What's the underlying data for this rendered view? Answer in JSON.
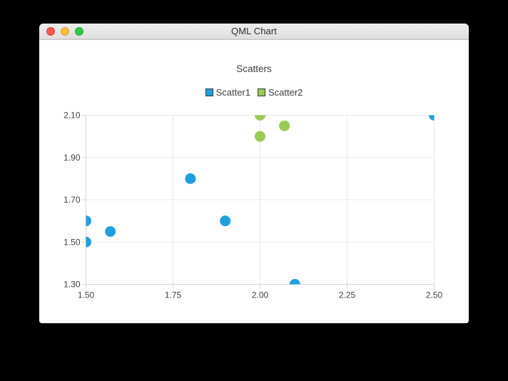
{
  "window": {
    "title": "QML Chart"
  },
  "chart_data": {
    "type": "scatter",
    "title": "Scatters",
    "xlabel": "",
    "ylabel": "",
    "xlim": [
      1.5,
      2.5
    ],
    "ylim": [
      1.3,
      2.1
    ],
    "x_tick_values": [
      1.5,
      1.75,
      2.0,
      2.25,
      2.5
    ],
    "x_tick_labels": [
      "1.50",
      "1.75",
      "2.00",
      "2.25",
      "2.50"
    ],
    "y_tick_values": [
      1.3,
      1.5,
      1.7,
      1.9,
      2.1
    ],
    "y_tick_labels": [
      "1.30",
      "1.50",
      "1.70",
      "1.90",
      "2.10"
    ],
    "grid": true,
    "legend_position": "top-center",
    "point_radius": 7.5,
    "series": [
      {
        "name": "Scatter1",
        "color": "#209fdf",
        "points": [
          {
            "x": 1.5,
            "y": 1.5
          },
          {
            "x": 1.5,
            "y": 1.6
          },
          {
            "x": 1.57,
            "y": 1.55
          },
          {
            "x": 1.8,
            "y": 1.8
          },
          {
            "x": 1.9,
            "y": 1.6
          },
          {
            "x": 2.1,
            "y": 1.3
          },
          {
            "x": 2.5,
            "y": 2.1
          }
        ]
      },
      {
        "name": "Scatter2",
        "color": "#99ca53",
        "points": [
          {
            "x": 2.0,
            "y": 2.0
          },
          {
            "x": 2.0,
            "y": 2.1
          },
          {
            "x": 2.07,
            "y": 2.05
          }
        ]
      }
    ]
  },
  "colors": {
    "grid_line": "#e8e8e8",
    "axis_line": "#d5d5d5",
    "tick_text": "#404044",
    "legend_marker_border": "#3a3a3c"
  }
}
